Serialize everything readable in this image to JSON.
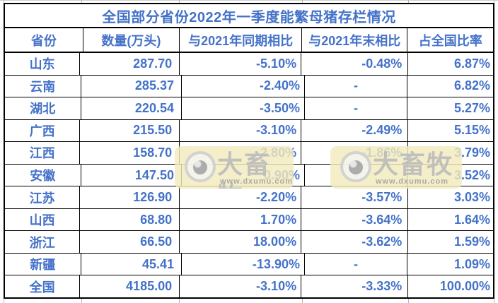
{
  "colors": {
    "text_blue": "#4472C9",
    "table_border": "#000000",
    "gridline_gray": "#b5b5b5",
    "watermark_background": "#f1eabd",
    "watermark_gray": "#9e9e9e"
  },
  "table": {
    "title": "全国部分省份2022年一季度能繁母猪存栏情况",
    "columns": [
      "省份",
      "数量(万头)",
      "与2021年同期相比",
      "与2021年末相比",
      "占全国比率"
    ],
    "rows": [
      [
        "山东",
        "287.70",
        "-5.10%",
        "-0.48%",
        "6.87%"
      ],
      [
        "云南",
        "285.37",
        "-2.40%",
        "-",
        "6.82%"
      ],
      [
        "湖北",
        "220.54",
        "-3.50%",
        "-",
        "5.27%"
      ],
      [
        "广西",
        "215.50",
        "-3.10%",
        "-2.49%",
        "5.15%"
      ],
      [
        "江西",
        "158.70",
        "2.80%",
        "-1.86%",
        "3.79%"
      ],
      [
        "安徽",
        "147.50",
        "0.90%",
        "-",
        "3.52%"
      ],
      [
        "江苏",
        "126.90",
        "-2.20%",
        "-3.57%",
        "3.03%"
      ],
      [
        "山西",
        "68.80",
        "1.70%",
        "-3.64%",
        "1.64%"
      ],
      [
        "浙江",
        "66.50",
        "18.00%",
        "-3.62%",
        "1.59%"
      ],
      [
        "新疆",
        "45.41",
        "-13.90%",
        "-",
        "1.09%"
      ],
      [
        "全国",
        "4185.00",
        "-3.10%",
        "-3.33%",
        "100.00%"
      ]
    ]
  },
  "watermark": {
    "brand": "大畜牧",
    "url": "www.dxumu.com"
  }
}
